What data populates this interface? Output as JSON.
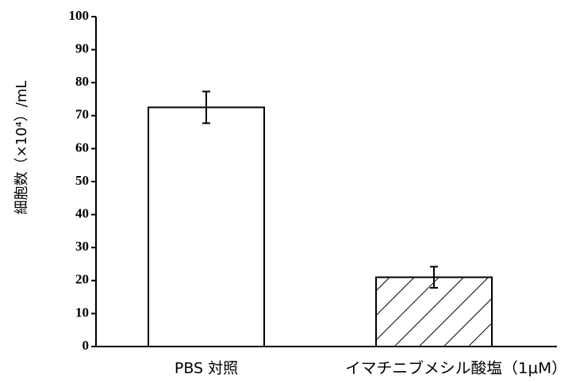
{
  "chart_data": {
    "type": "bar",
    "title": "",
    "xlabel": "",
    "ylabel": "細胞数（×10⁴）/mL",
    "ylim": [
      0,
      100
    ],
    "yticks": [
      0,
      10,
      20,
      30,
      40,
      50,
      60,
      70,
      80,
      90,
      100
    ],
    "grid": false,
    "legend": "none",
    "categories": [
      "PBS 対照",
      "イマチニブメシル酸塩（1μM）"
    ],
    "values": [
      72.5,
      21
    ],
    "errors": [
      4.8,
      3.2
    ],
    "bar_styles": [
      "white",
      "hatched"
    ],
    "colors": {
      "bar_fill": "#ffffff",
      "stroke": "#000000"
    }
  }
}
